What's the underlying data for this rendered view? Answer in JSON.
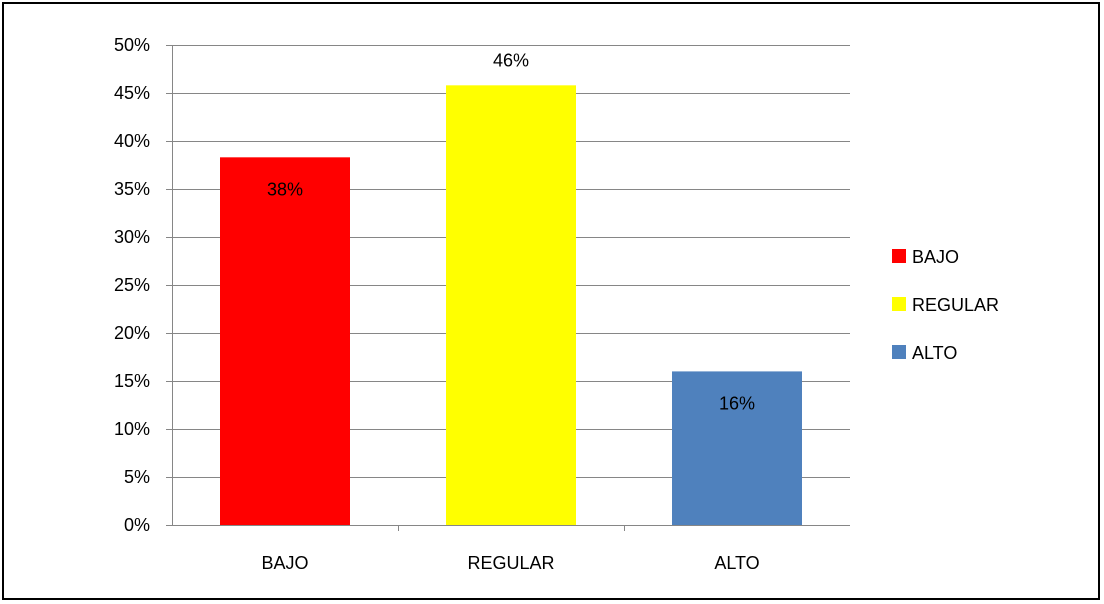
{
  "chart_data": {
    "type": "bar",
    "categories": [
      "BAJO",
      "REGULAR",
      "ALTO"
    ],
    "values": [
      38.3,
      45.8,
      16.0
    ],
    "data_labels": [
      "38%",
      "46%",
      "16%"
    ],
    "colors": [
      "#ff0000",
      "#ffff00",
      "#4f81bd"
    ],
    "ylim": [
      0,
      50
    ],
    "yticks": [
      0,
      5,
      10,
      15,
      20,
      25,
      30,
      35,
      40,
      45,
      50
    ],
    "ytick_labels": [
      "0%",
      "5%",
      "10%",
      "15%",
      "20%",
      "25%",
      "30%",
      "35%",
      "40%",
      "45%",
      "50%"
    ],
    "grid": true,
    "legend": {
      "placement": "right",
      "entries": [
        "BAJO",
        "REGULAR",
        "ALTO"
      ]
    },
    "title": "",
    "xlabel": "",
    "ylabel": ""
  }
}
